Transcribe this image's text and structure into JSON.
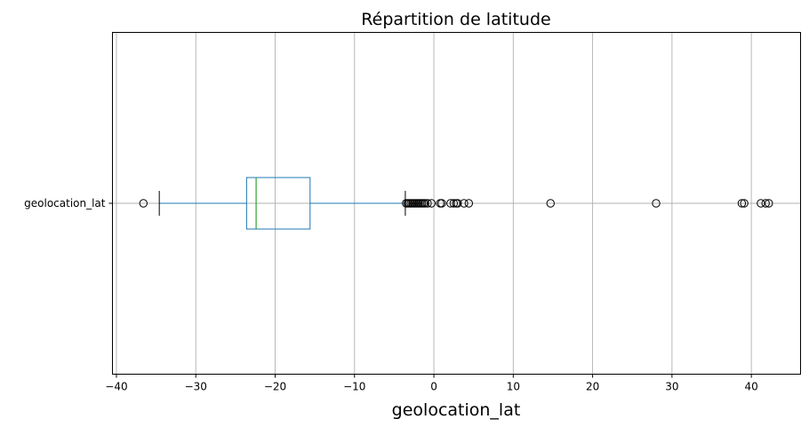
{
  "chart_data": {
    "type": "boxplot",
    "orientation": "horizontal",
    "title": "Répartition de latitude",
    "xlabel": "geolocation_lat",
    "ylabel": "",
    "xlim": [
      -40.5,
      46.2
    ],
    "xticks": [
      -40,
      -30,
      -20,
      -10,
      0,
      10,
      20,
      30,
      40
    ],
    "xtick_labels": [
      "−40",
      "−30",
      "−20",
      "−10",
      "0",
      "10",
      "20",
      "30",
      "40"
    ],
    "grid": true,
    "categories": [
      "geolocation_lat"
    ],
    "box": {
      "whisker_low": -34.6,
      "q1": -23.6,
      "median": -22.4,
      "q3": -15.6,
      "whisker_high": -3.6
    },
    "outliers": [
      -36.6,
      -3.5,
      -3.3,
      -3.1,
      -2.9,
      -2.7,
      -2.5,
      -2.3,
      -2.1,
      -1.9,
      -1.7,
      -1.5,
      -1.3,
      -1.1,
      -0.8,
      -0.3,
      0.8,
      1.0,
      2.1,
      2.5,
      2.8,
      3.0,
      3.8,
      4.4,
      14.7,
      28.0,
      38.8,
      39.1,
      41.2,
      41.8,
      42.2
    ],
    "colors": {
      "box": "#1f77b4",
      "median": "#2ca02c",
      "whisker_cap": "#000000",
      "grid": "#b0b0b0",
      "outlier_edge": "#000000"
    }
  }
}
